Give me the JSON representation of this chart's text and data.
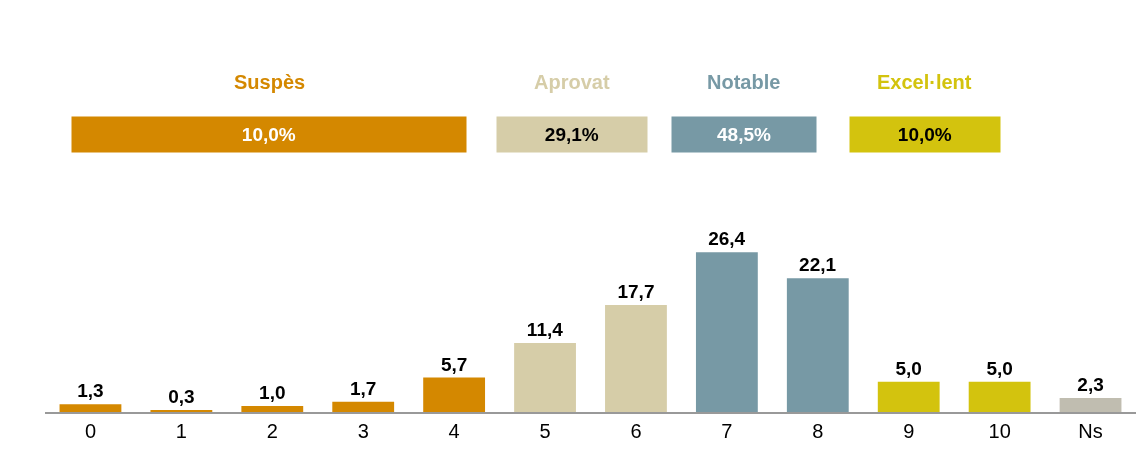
{
  "chart_data": {
    "type": "bar",
    "categories": [
      "0",
      "1",
      "2",
      "3",
      "4",
      "5",
      "6",
      "7",
      "8",
      "9",
      "10",
      "Ns"
    ],
    "values": [
      1.3,
      0.3,
      1.0,
      1.7,
      5.7,
      11.4,
      17.7,
      26.4,
      22.1,
      5.0,
      5.0,
      2.3
    ],
    "value_labels": [
      "1,3",
      "0,3",
      "1,0",
      "1,7",
      "5,7",
      "11,4",
      "17,7",
      "26,4",
      "22,1",
      "5,0",
      "5,0",
      "2,3"
    ],
    "colors": [
      "#d48800",
      "#d48800",
      "#d48800",
      "#d48800",
      "#d48800",
      "#d6cda8",
      "#d6cda8",
      "#7799a5",
      "#7799a5",
      "#d3c30e",
      "#d3c30e",
      "#c0bdb0"
    ],
    "annotations": [
      "Suspès",
      "10,0%",
      "Aprovat",
      "29,1%",
      "Notable",
      "48,5%",
      "Excel·lent",
      "10,0%"
    ],
    "legend": false
  }
}
